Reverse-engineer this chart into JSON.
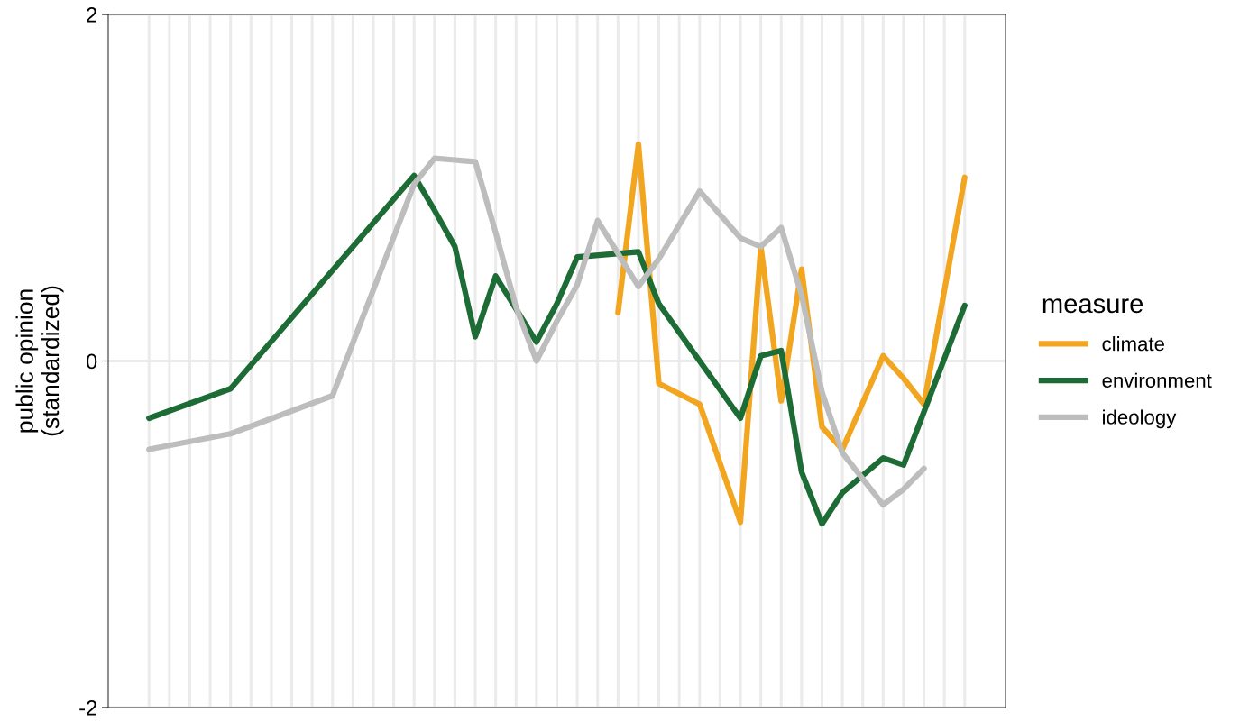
{
  "chart_data": {
    "type": "line",
    "ylabel": "public opinion\n(standardized)",
    "legend_title": "measure",
    "legend": "right",
    "grid": true,
    "tick_labels": "y",
    "categories": [
      null,
      null,
      null,
      null,
      null,
      null,
      null,
      null,
      null,
      null,
      null,
      null,
      null,
      null,
      null,
      null,
      null,
      null,
      null,
      null,
      null,
      null,
      null,
      null,
      null,
      null,
      null,
      null,
      null,
      null,
      null,
      null,
      null,
      null,
      null,
      null,
      null,
      null,
      null,
      null,
      null
    ],
    "ylim": [
      -2,
      2
    ],
    "yticks": [
      -2,
      0,
      2
    ],
    "series": [
      {
        "name": "climate",
        "color": "#f2a51f",
        "values": [
          null,
          null,
          null,
          null,
          null,
          null,
          null,
          null,
          null,
          null,
          null,
          null,
          null,
          null,
          null,
          null,
          null,
          null,
          null,
          null,
          null,
          null,
          null,
          0.28,
          1.25,
          -0.13,
          null,
          -0.25,
          null,
          -0.93,
          0.66,
          -0.23,
          0.53,
          -0.38,
          -0.51,
          null,
          0.03,
          -0.1,
          -0.25,
          null,
          1.06
        ]
      },
      {
        "name": "environment",
        "color": "#1d6b35",
        "values": [
          -0.33,
          null,
          null,
          null,
          -0.16,
          null,
          null,
          null,
          null,
          null,
          null,
          null,
          null,
          1.07,
          0.87,
          0.66,
          0.14,
          0.49,
          null,
          0.11,
          0.33,
          0.6,
          null,
          null,
          0.63,
          0.33,
          null,
          null,
          null,
          -0.33,
          0.03,
          0.06,
          -0.64,
          -0.94,
          -0.76,
          null,
          -0.56,
          -0.6,
          null,
          null,
          0.32
        ]
      },
      {
        "name": "ideology",
        "color": "#bdbdbd",
        "values": [
          -0.51,
          null,
          null,
          null,
          -0.42,
          null,
          null,
          null,
          null,
          -0.2,
          null,
          null,
          null,
          1.02,
          1.17,
          1.16,
          1.15,
          0.74,
          0.31,
          0.0,
          0.23,
          0.44,
          0.81,
          null,
          0.43,
          0.59,
          null,
          0.98,
          null,
          0.71,
          0.66,
          0.77,
          0.38,
          -0.18,
          -0.53,
          null,
          -0.83,
          -0.74,
          -0.62,
          null,
          null
        ]
      }
    ]
  }
}
